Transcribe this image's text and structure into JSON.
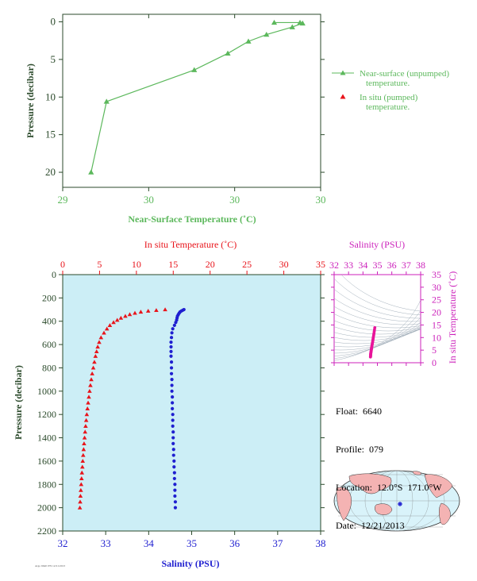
{
  "colors": {
    "green": "#5cb85c",
    "red": "#e8141b",
    "blue": "#1f1fd0",
    "magenta": "#cc22bb",
    "axis_dark": "#2b4a2b",
    "panel_bg": "#cceef6",
    "land": "#f4b3b3",
    "ocean": "#d9f3fa"
  },
  "info": {
    "float": "Float:  6640",
    "profile": "Profile:  079",
    "location": "Location:  12.0°S  171.0°W",
    "date": "Date:  12/21/2013"
  },
  "footer": "Argo 6640 079 12/21/2013",
  "chart_data": [
    {
      "type": "line",
      "xlabel": "Near-Surface Temperature (˚C)",
      "ylabel": "Pressure (decibar)",
      "xlim": [
        29,
        30
      ],
      "ylim": [
        22,
        -1
      ],
      "x_ticks": [
        "29",
        "30",
        "30",
        "30"
      ],
      "y_ticks": [
        0,
        5,
        10,
        15,
        20
      ],
      "legend": [
        "Near-surface (unpumped) temperature.",
        "In situ (pumped) temperature."
      ],
      "legend_position": "right",
      "series": [
        {
          "name": "Near-surface (unpumped) temperature.",
          "points": [
            [
              29.11,
              20.0
            ],
            [
              29.17,
              10.6
            ],
            [
              29.51,
              6.4
            ],
            [
              29.64,
              4.2
            ],
            [
              29.72,
              2.6
            ],
            [
              29.79,
              1.7
            ],
            [
              29.89,
              0.7
            ],
            [
              29.93,
              0.2
            ],
            [
              29.92,
              0.1
            ],
            [
              29.82,
              0.1
            ]
          ]
        },
        {
          "name": "In situ (pumped) temperature.",
          "points": []
        }
      ]
    },
    {
      "type": "scatter",
      "ylabel": "Pressure (decibar)",
      "ylim": [
        2200,
        0
      ],
      "y_ticks": [
        0,
        200,
        400,
        600,
        800,
        1000,
        1200,
        1400,
        1600,
        1800,
        2000,
        2200
      ],
      "top_axis": {
        "label": "In situ Temperature (˚C)",
        "lim": [
          0,
          35
        ],
        "ticks": [
          0,
          5,
          10,
          15,
          20,
          25,
          30,
          35
        ]
      },
      "bottom_axis": {
        "label": "Salinity (PSU)",
        "lim": [
          32,
          38
        ],
        "ticks": [
          32,
          33,
          34,
          35,
          36,
          37,
          38
        ]
      },
      "temperature": {
        "pressure": [
          300,
          306,
          312,
          320,
          330,
          342,
          356,
          372,
          390,
          410,
          435,
          465,
          500,
          540,
          580,
          620,
          660,
          700,
          750,
          800,
          850,
          900,
          950,
          1000,
          1050,
          1100,
          1150,
          1200,
          1250,
          1300,
          1350,
          1400,
          1450,
          1500,
          1550,
          1600,
          1650,
          1700,
          1750,
          1800,
          1850,
          1900,
          1950,
          2000
        ],
        "value": [
          13.9,
          12.7,
          11.6,
          10.6,
          9.8,
          9.1,
          8.5,
          7.9,
          7.4,
          6.9,
          6.4,
          6.0,
          5.6,
          5.2,
          4.95,
          4.75,
          4.6,
          4.45,
          4.3,
          4.15,
          4.0,
          3.88,
          3.76,
          3.65,
          3.55,
          3.45,
          3.36,
          3.27,
          3.19,
          3.11,
          3.04,
          2.97,
          2.9,
          2.84,
          2.78,
          2.72,
          2.67,
          2.61,
          2.56,
          2.51,
          2.46,
          2.41,
          2.37,
          2.33
        ]
      },
      "salinity": {
        "pressure": [
          300,
          306,
          312,
          320,
          330,
          342,
          356,
          372,
          390,
          410,
          435,
          465,
          500,
          540,
          580,
          620,
          660,
          700,
          750,
          800,
          850,
          900,
          950,
          1000,
          1050,
          1100,
          1150,
          1200,
          1250,
          1300,
          1350,
          1400,
          1450,
          1500,
          1550,
          1600,
          1650,
          1700,
          1750,
          1800,
          1850,
          1900,
          1950,
          2000
        ],
        "value": [
          34.82,
          34.79,
          34.76,
          34.73,
          34.71,
          34.69,
          34.67,
          34.66,
          34.65,
          34.63,
          34.6,
          34.56,
          34.54,
          34.53,
          34.52,
          34.52,
          34.52,
          34.52,
          34.53,
          34.53,
          34.53,
          34.54,
          34.54,
          34.54,
          34.55,
          34.55,
          34.55,
          34.56,
          34.56,
          34.56,
          34.57,
          34.57,
          34.57,
          34.58,
          34.58,
          34.59,
          34.59,
          34.6,
          34.6,
          34.61,
          34.61,
          34.61,
          34.62,
          34.62
        ]
      }
    },
    {
      "type": "scatter",
      "top_axis": {
        "label": "Salinity (PSU)",
        "lim": [
          32,
          38
        ],
        "ticks": [
          32,
          33,
          34,
          35,
          36,
          37,
          38
        ]
      },
      "right_axis": {
        "label": "In situ Temperature (˚C)",
        "lim": [
          0,
          35
        ],
        "ticks": [
          0,
          5,
          10,
          15,
          20,
          25,
          30,
          35
        ]
      },
      "points": [
        [
          34.52,
          2.3
        ],
        [
          34.53,
          3.0
        ],
        [
          34.54,
          3.7
        ],
        [
          34.56,
          4.4
        ],
        [
          34.58,
          5.2
        ],
        [
          34.6,
          6.0
        ],
        [
          34.63,
          7.0
        ],
        [
          34.67,
          8.3
        ],
        [
          34.71,
          9.8
        ],
        [
          34.76,
          11.6
        ],
        [
          34.82,
          13.9
        ]
      ]
    }
  ]
}
